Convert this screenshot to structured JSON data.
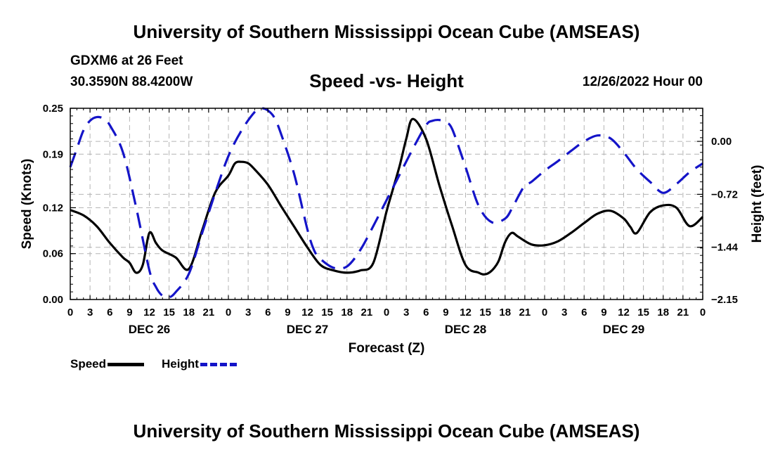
{
  "header": {
    "title": "University of Southern Mississippi Ocean Cube (AMSEAS)",
    "station": "GDXM6 at 26 Feet",
    "coords": "30.3590N  88.4200W",
    "chart_title": "Speed -vs- Height",
    "datetime": "12/26/2022 Hour 00"
  },
  "footer": {
    "title": "University of Southern Mississippi Ocean Cube (AMSEAS)"
  },
  "legend": {
    "speed": "Speed",
    "height": "Height"
  },
  "colors": {
    "speed": "#000000",
    "height": "#1414c8",
    "grid": "#b4b4b4"
  },
  "chart_data": {
    "type": "line",
    "xlabel": "Forecast (Z)",
    "ylabel": "Speed (Knots)",
    "y2label": "Height (feet)",
    "xlim": [
      0,
      96
    ],
    "ylim": [
      0,
      0.25
    ],
    "y2lim": [
      -2.15,
      0.45
    ],
    "x_ticks": [
      0,
      3,
      6,
      9,
      12,
      15,
      18,
      21,
      24,
      27,
      30,
      33,
      36,
      39,
      42,
      45,
      48,
      51,
      54,
      57,
      60,
      63,
      66,
      69,
      72,
      75,
      78,
      81,
      84,
      87,
      90,
      93,
      96
    ],
    "x_tick_labels": [
      "0",
      "3",
      "6",
      "9",
      "12",
      "15",
      "18",
      "21",
      "0",
      "3",
      "6",
      "9",
      "12",
      "15",
      "18",
      "21",
      "0",
      "3",
      "6",
      "9",
      "12",
      "15",
      "18",
      "21",
      "0",
      "3",
      "6",
      "9",
      "12",
      "15",
      "18",
      "21",
      "0"
    ],
    "day_labels": [
      {
        "x": 12,
        "label": "DEC 26"
      },
      {
        "x": 36,
        "label": "DEC 27"
      },
      {
        "x": 60,
        "label": "DEC 28"
      },
      {
        "x": 84,
        "label": "DEC 29"
      }
    ],
    "y_ticks": [
      0.0,
      0.06,
      0.12,
      0.19,
      0.25
    ],
    "y_tick_labels": [
      "0.00",
      "0.06",
      "0.12",
      "0.19",
      "0.25"
    ],
    "y2_ticks": [
      0.0,
      -0.72,
      -1.44,
      -2.15
    ],
    "y2_tick_labels": [
      "0.00",
      "−0.72",
      "−1.44",
      "−2.15"
    ],
    "series": [
      {
        "name": "Speed",
        "axis": "left",
        "style": "solid",
        "x": [
          0,
          2,
          4,
          6,
          8,
          9,
          10,
          11,
          12,
          13,
          14,
          16,
          18,
          20,
          22,
          24,
          25,
          26,
          27,
          28,
          30,
          32,
          34,
          36,
          38,
          40,
          42,
          44,
          46,
          48,
          49,
          50,
          51,
          52,
          54,
          56,
          58,
          60,
          62,
          63,
          64,
          65,
          66,
          67,
          68,
          70,
          72,
          74,
          76,
          78,
          80,
          82,
          84,
          85,
          86,
          88,
          90,
          92,
          94,
          96
        ],
        "y": [
          0.117,
          0.11,
          0.096,
          0.074,
          0.055,
          0.048,
          0.035,
          0.045,
          0.087,
          0.074,
          0.064,
          0.055,
          0.04,
          0.09,
          0.14,
          0.162,
          0.178,
          0.18,
          0.178,
          0.17,
          0.15,
          0.122,
          0.095,
          0.068,
          0.045,
          0.038,
          0.035,
          0.038,
          0.048,
          0.115,
          0.145,
          0.175,
          0.21,
          0.236,
          0.21,
          0.15,
          0.095,
          0.045,
          0.035,
          0.033,
          0.038,
          0.05,
          0.075,
          0.087,
          0.082,
          0.072,
          0.071,
          0.076,
          0.087,
          0.1,
          0.112,
          0.116,
          0.106,
          0.095,
          0.087,
          0.114,
          0.123,
          0.12,
          0.096,
          0.108
        ]
      },
      {
        "name": "Height",
        "axis": "right",
        "style": "dashed",
        "x": [
          0,
          1,
          2,
          3,
          4,
          5,
          6,
          8,
          10,
          12,
          13,
          14,
          15,
          16,
          18,
          20,
          22,
          24,
          26,
          28,
          29,
          30,
          31,
          32,
          34,
          36,
          37,
          38,
          40,
          42,
          44,
          46,
          48,
          50,
          52,
          54,
          55,
          56,
          57,
          58,
          60,
          62,
          64,
          66,
          67,
          68,
          69,
          70,
          72,
          74,
          76,
          78,
          80,
          82,
          84,
          86,
          88,
          90,
          92,
          94,
          96
        ],
        "y": [
          -0.35,
          -0.1,
          0.15,
          0.28,
          0.33,
          0.31,
          0.22,
          -0.15,
          -0.9,
          -1.75,
          -1.98,
          -2.1,
          -2.12,
          -2.05,
          -1.8,
          -1.25,
          -0.7,
          -0.2,
          0.15,
          0.4,
          0.45,
          0.42,
          0.32,
          0.1,
          -0.45,
          -1.2,
          -1.48,
          -1.6,
          -1.72,
          -1.7,
          -1.48,
          -1.15,
          -0.8,
          -0.45,
          -0.1,
          0.22,
          0.28,
          0.29,
          0.26,
          0.16,
          -0.35,
          -0.88,
          -1.1,
          -1.05,
          -0.92,
          -0.75,
          -0.6,
          -0.55,
          -0.4,
          -0.27,
          -0.13,
          0.0,
          0.08,
          0.04,
          -0.15,
          -0.38,
          -0.55,
          -0.7,
          -0.58,
          -0.42,
          -0.3
        ]
      }
    ]
  }
}
